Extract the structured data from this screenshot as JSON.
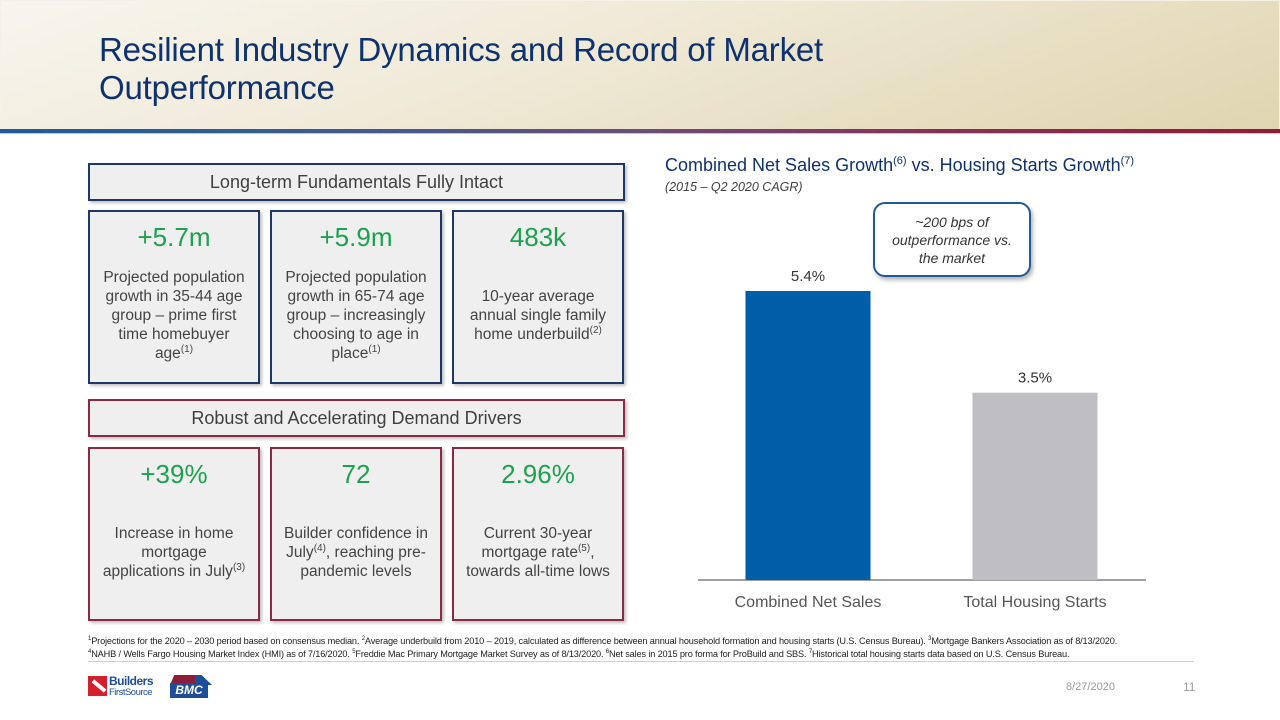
{
  "slide": {
    "title_line1": "Resilient Industry Dynamics and Record of Market",
    "title_line2": "Outperformance",
    "date": "8/27/2020",
    "page_number": "11"
  },
  "left_panel": {
    "sections": [
      {
        "heading": "Long-term Fundamentals Fully Intact",
        "cards": [
          {
            "value": "+5.7m",
            "lines": [
              "Projected population",
              "growth in 35-44 age",
              "group – prime first",
              "time homebuyer"
            ],
            "last": "age",
            "sup": "(1)"
          },
          {
            "value": "+5.9m",
            "lines": [
              "Projected population",
              "growth in 65-74 age",
              "group – increasingly",
              "choosing to age in"
            ],
            "last": "place",
            "sup": "(1)"
          },
          {
            "value": "483k",
            "lines": [
              "10-year average",
              "annual single family"
            ],
            "last": "home underbuild",
            "sup": "(2)"
          }
        ]
      },
      {
        "heading": "Robust and Accelerating Demand Drivers",
        "cards": [
          {
            "value": "+39%",
            "lines": [
              "Increase in home",
              "mortgage"
            ],
            "last": "applications in July",
            "sup": "(3)"
          },
          {
            "value": "72",
            "line1_pre": "Builder confidence in",
            "line2_pre": "July",
            "line2_sup": "(4)",
            "line2_post": ", reaching pre-",
            "line3": "pandemic levels"
          },
          {
            "value": "2.96%",
            "line1": "Current 30-year",
            "line2_pre": "mortgage rate",
            "line2_sup": "(5)",
            "line2_post": ",",
            "line3": "towards all-time lows"
          }
        ]
      }
    ]
  },
  "chart_data": {
    "type": "bar",
    "title": "Combined Net Sales Growth vs. Housing Starts Growth",
    "title_parts": {
      "part1": "Combined Net Sales Growth",
      "sup1": "(6)",
      "part2": " vs. Housing Starts Growth",
      "sup2": "(7)"
    },
    "subtitle": "(2015 – Q2 2020 CAGR)",
    "categories": [
      "Combined Net Sales",
      "Total Housing Starts"
    ],
    "values": [
      5.4,
      3.5
    ],
    "data_labels": [
      "5.4%",
      "3.5%"
    ],
    "colors": [
      "#005ea8",
      "#bfbfc3"
    ],
    "xlabel": "",
    "ylabel": "",
    "ylim": [
      0,
      5.4
    ],
    "grid": false,
    "legend": "none",
    "annotation": {
      "line1": "~200 bps of",
      "line2": "outperformance vs.",
      "line3": "the market"
    }
  },
  "footnotes": {
    "line1": [
      {
        "sup": "1",
        "text": "Projections for the 2020 – 2030 period based on consensus median. "
      },
      {
        "sup": "2",
        "text": "Average underbuild from 2010 – 2019, calculated as difference between annual household formation and housing starts (U.S. Census Bureau). "
      },
      {
        "sup": "3",
        "text": "Mortgage Bankers Association as of 8/13/2020."
      }
    ],
    "line2": [
      {
        "sup": "4",
        "text": "NAHB / Wells Fargo Housing Market Index (HMI) as of 7/16/2020. "
      },
      {
        "sup": "5",
        "text": "Freddie Mac Primary Mortgage Market Survey as of 8/13/2020. "
      },
      {
        "sup": "6",
        "text": "Net sales in 2015 pro forma for ProBuild and SBS. "
      },
      {
        "sup": "7",
        "text": "Historical total housing starts data based on U.S. Census Bureau."
      }
    ]
  },
  "logos": {
    "bfs_line1": "Builders",
    "bfs_line2": "FirstSource",
    "bmc": "BMC"
  }
}
